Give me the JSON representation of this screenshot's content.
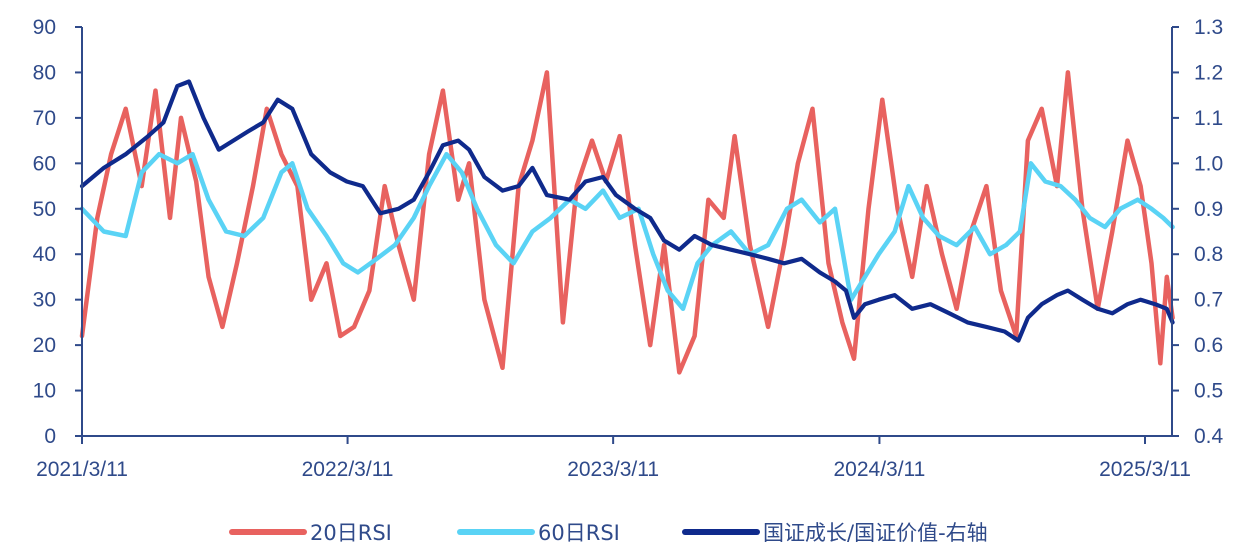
{
  "chart_data": {
    "type": "line",
    "title": "",
    "xlabel": "",
    "ylabel": "",
    "x_tick_labels": [
      "2021/3/11",
      "2022/3/11",
      "2023/3/11",
      "2024/3/11",
      "2025/3/11"
    ],
    "x_range": [
      "2021-03-11",
      "2025-04-20"
    ],
    "ylim_left": [
      0,
      90
    ],
    "ylim_right": [
      0.4,
      1.3
    ],
    "y_ticks_left": [
      0,
      10,
      20,
      30,
      40,
      50,
      60,
      70,
      80,
      90
    ],
    "y_ticks_right": [
      0.4,
      0.5,
      0.6,
      0.7,
      0.8,
      0.9,
      1.0,
      1.1,
      1.2,
      1.3
    ],
    "y_tick_labels_right": [
      "0.4",
      "0.5",
      "0.6",
      "0.7",
      "0.8",
      "0.9",
      "1.0",
      "1.1",
      "1.2",
      "1.3"
    ],
    "grid": false,
    "legend_position": "bottom",
    "series": [
      {
        "name": "20日RSI",
        "axis": "left",
        "color": "#e8625f",
        "points": [
          [
            "2021-03-11",
            22
          ],
          [
            "2021-04-01",
            48
          ],
          [
            "2021-04-20",
            62
          ],
          [
            "2021-05-10",
            72
          ],
          [
            "2021-06-01",
            55
          ],
          [
            "2021-06-20",
            76
          ],
          [
            "2021-07-10",
            48
          ],
          [
            "2021-07-25",
            70
          ],
          [
            "2021-08-15",
            56
          ],
          [
            "2021-09-01",
            35
          ],
          [
            "2021-09-20",
            24
          ],
          [
            "2021-10-10",
            38
          ],
          [
            "2021-11-01",
            55
          ],
          [
            "2021-11-20",
            72
          ],
          [
            "2021-12-10",
            62
          ],
          [
            "2022-01-01",
            55
          ],
          [
            "2022-01-20",
            30
          ],
          [
            "2022-02-10",
            38
          ],
          [
            "2022-03-01",
            22
          ],
          [
            "2022-03-20",
            24
          ],
          [
            "2022-04-10",
            32
          ],
          [
            "2022-05-01",
            55
          ],
          [
            "2022-05-20",
            42
          ],
          [
            "2022-06-10",
            30
          ],
          [
            "2022-07-01",
            62
          ],
          [
            "2022-07-20",
            76
          ],
          [
            "2022-08-10",
            52
          ],
          [
            "2022-08-25",
            60
          ],
          [
            "2022-09-15",
            30
          ],
          [
            "2022-10-10",
            15
          ],
          [
            "2022-11-01",
            55
          ],
          [
            "2022-11-20",
            65
          ],
          [
            "2022-12-10",
            80
          ],
          [
            "2023-01-01",
            25
          ],
          [
            "2023-01-20",
            55
          ],
          [
            "2023-02-10",
            65
          ],
          [
            "2023-03-01",
            56
          ],
          [
            "2023-03-20",
            66
          ],
          [
            "2023-04-10",
            42
          ],
          [
            "2023-05-01",
            20
          ],
          [
            "2023-05-20",
            42
          ],
          [
            "2023-06-10",
            14
          ],
          [
            "2023-07-01",
            22
          ],
          [
            "2023-07-20",
            52
          ],
          [
            "2023-08-10",
            48
          ],
          [
            "2023-08-25",
            66
          ],
          [
            "2023-09-15",
            42
          ],
          [
            "2023-10-10",
            24
          ],
          [
            "2023-11-01",
            42
          ],
          [
            "2023-11-20",
            60
          ],
          [
            "2023-12-10",
            72
          ],
          [
            "2024-01-01",
            38
          ],
          [
            "2024-01-20",
            25
          ],
          [
            "2024-02-05",
            17
          ],
          [
            "2024-02-25",
            50
          ],
          [
            "2024-03-15",
            74
          ],
          [
            "2024-04-05",
            50
          ],
          [
            "2024-04-25",
            35
          ],
          [
            "2024-05-15",
            55
          ],
          [
            "2024-06-05",
            40
          ],
          [
            "2024-06-25",
            28
          ],
          [
            "2024-07-15",
            45
          ],
          [
            "2024-08-05",
            55
          ],
          [
            "2024-08-25",
            32
          ],
          [
            "2024-09-15",
            22
          ],
          [
            "2024-10-01",
            65
          ],
          [
            "2024-10-20",
            72
          ],
          [
            "2024-11-10",
            55
          ],
          [
            "2024-11-25",
            80
          ],
          [
            "2024-12-15",
            50
          ],
          [
            "2025-01-05",
            28
          ],
          [
            "2025-01-25",
            45
          ],
          [
            "2025-02-15",
            65
          ],
          [
            "2025-03-05",
            55
          ],
          [
            "2025-03-20",
            38
          ],
          [
            "2025-04-01",
            16
          ],
          [
            "2025-04-10",
            35
          ],
          [
            "2025-04-18",
            26
          ]
        ]
      },
      {
        "name": "60日RSI",
        "axis": "left",
        "color": "#5ad3f5",
        "points": [
          [
            "2021-03-11",
            50
          ],
          [
            "2021-04-10",
            45
          ],
          [
            "2021-05-10",
            44
          ],
          [
            "2021-06-01",
            58
          ],
          [
            "2021-06-25",
            62
          ],
          [
            "2021-07-20",
            60
          ],
          [
            "2021-08-10",
            62
          ],
          [
            "2021-09-01",
            52
          ],
          [
            "2021-09-25",
            45
          ],
          [
            "2021-10-20",
            44
          ],
          [
            "2021-11-15",
            48
          ],
          [
            "2021-12-10",
            58
          ],
          [
            "2021-12-25",
            60
          ],
          [
            "2022-01-15",
            50
          ],
          [
            "2022-02-10",
            44
          ],
          [
            "2022-03-05",
            38
          ],
          [
            "2022-03-25",
            36
          ],
          [
            "2022-04-20",
            39
          ],
          [
            "2022-05-15",
            42
          ],
          [
            "2022-06-10",
            48
          ],
          [
            "2022-07-01",
            55
          ],
          [
            "2022-07-25",
            62
          ],
          [
            "2022-08-15",
            58
          ],
          [
            "2022-09-05",
            50
          ],
          [
            "2022-10-01",
            42
          ],
          [
            "2022-10-25",
            38
          ],
          [
            "2022-11-20",
            45
          ],
          [
            "2022-12-15",
            48
          ],
          [
            "2023-01-10",
            52
          ],
          [
            "2023-02-01",
            50
          ],
          [
            "2023-02-25",
            54
          ],
          [
            "2023-03-20",
            48
          ],
          [
            "2023-04-15",
            50
          ],
          [
            "2023-05-05",
            40
          ],
          [
            "2023-05-25",
            32
          ],
          [
            "2023-06-15",
            28
          ],
          [
            "2023-07-05",
            38
          ],
          [
            "2023-07-25",
            42
          ],
          [
            "2023-08-20",
            45
          ],
          [
            "2023-09-15",
            40
          ],
          [
            "2023-10-10",
            42
          ],
          [
            "2023-11-05",
            50
          ],
          [
            "2023-11-25",
            52
          ],
          [
            "2023-12-20",
            47
          ],
          [
            "2024-01-10",
            50
          ],
          [
            "2024-02-01",
            30
          ],
          [
            "2024-02-20",
            35
          ],
          [
            "2024-03-10",
            40
          ],
          [
            "2024-04-01",
            45
          ],
          [
            "2024-04-20",
            55
          ],
          [
            "2024-05-10",
            48
          ],
          [
            "2024-06-01",
            44
          ],
          [
            "2024-06-25",
            42
          ],
          [
            "2024-07-20",
            46
          ],
          [
            "2024-08-10",
            40
          ],
          [
            "2024-09-01",
            42
          ],
          [
            "2024-09-20",
            45
          ],
          [
            "2024-10-05",
            60
          ],
          [
            "2024-10-25",
            56
          ],
          [
            "2024-11-15",
            55
          ],
          [
            "2024-12-05",
            52
          ],
          [
            "2024-12-25",
            48
          ],
          [
            "2025-01-15",
            46
          ],
          [
            "2025-02-05",
            50
          ],
          [
            "2025-03-01",
            52
          ],
          [
            "2025-03-20",
            50
          ],
          [
            "2025-04-05",
            48
          ],
          [
            "2025-04-18",
            46
          ]
        ]
      },
      {
        "name": "国证成长/国证价值-右轴",
        "axis": "right",
        "color": "#0f2a8c",
        "points": [
          [
            "2021-03-11",
            0.95
          ],
          [
            "2021-04-10",
            0.99
          ],
          [
            "2021-05-10",
            1.02
          ],
          [
            "2021-06-10",
            1.06
          ],
          [
            "2021-07-01",
            1.09
          ],
          [
            "2021-07-20",
            1.17
          ],
          [
            "2021-08-05",
            1.18
          ],
          [
            "2021-08-25",
            1.1
          ],
          [
            "2021-09-15",
            1.03
          ],
          [
            "2021-10-05",
            1.05
          ],
          [
            "2021-10-25",
            1.07
          ],
          [
            "2021-11-15",
            1.09
          ],
          [
            "2021-12-05",
            1.14
          ],
          [
            "2021-12-25",
            1.12
          ],
          [
            "2022-01-20",
            1.02
          ],
          [
            "2022-02-15",
            0.98
          ],
          [
            "2022-03-10",
            0.96
          ],
          [
            "2022-04-01",
            0.95
          ],
          [
            "2022-04-25",
            0.89
          ],
          [
            "2022-05-20",
            0.9
          ],
          [
            "2022-06-10",
            0.92
          ],
          [
            "2022-07-01",
            0.98
          ],
          [
            "2022-07-20",
            1.04
          ],
          [
            "2022-08-10",
            1.05
          ],
          [
            "2022-08-25",
            1.03
          ],
          [
            "2022-09-15",
            0.97
          ],
          [
            "2022-10-10",
            0.94
          ],
          [
            "2022-11-01",
            0.95
          ],
          [
            "2022-11-20",
            0.99
          ],
          [
            "2022-12-10",
            0.93
          ],
          [
            "2023-01-10",
            0.92
          ],
          [
            "2023-02-01",
            0.96
          ],
          [
            "2023-02-25",
            0.97
          ],
          [
            "2023-03-15",
            0.93
          ],
          [
            "2023-04-10",
            0.9
          ],
          [
            "2023-05-01",
            0.88
          ],
          [
            "2023-05-20",
            0.83
          ],
          [
            "2023-06-10",
            0.81
          ],
          [
            "2023-07-01",
            0.84
          ],
          [
            "2023-07-25",
            0.82
          ],
          [
            "2023-08-20",
            0.81
          ],
          [
            "2023-09-15",
            0.8
          ],
          [
            "2023-10-10",
            0.79
          ],
          [
            "2023-11-01",
            0.78
          ],
          [
            "2023-11-25",
            0.79
          ],
          [
            "2023-12-20",
            0.76
          ],
          [
            "2024-01-10",
            0.74
          ],
          [
            "2024-01-25",
            0.72
          ],
          [
            "2024-02-05",
            0.66
          ],
          [
            "2024-02-20",
            0.69
          ],
          [
            "2024-03-10",
            0.7
          ],
          [
            "2024-04-01",
            0.71
          ],
          [
            "2024-04-25",
            0.68
          ],
          [
            "2024-05-20",
            0.69
          ],
          [
            "2024-06-15",
            0.67
          ],
          [
            "2024-07-10",
            0.65
          ],
          [
            "2024-08-05",
            0.64
          ],
          [
            "2024-08-30",
            0.63
          ],
          [
            "2024-09-18",
            0.61
          ],
          [
            "2024-10-01",
            0.66
          ],
          [
            "2024-10-20",
            0.69
          ],
          [
            "2024-11-10",
            0.71
          ],
          [
            "2024-11-25",
            0.72
          ],
          [
            "2024-12-15",
            0.7
          ],
          [
            "2025-01-05",
            0.68
          ],
          [
            "2025-01-25",
            0.67
          ],
          [
            "2025-02-15",
            0.69
          ],
          [
            "2025-03-05",
            0.7
          ],
          [
            "2025-03-25",
            0.69
          ],
          [
            "2025-04-10",
            0.68
          ],
          [
            "2025-04-18",
            0.65
          ]
        ]
      }
    ]
  },
  "legend": [
    {
      "label": "20日RSI",
      "color": "#e8625f"
    },
    {
      "label": "60日RSI",
      "color": "#5ad3f5"
    },
    {
      "label": "国证成长/国证价值-右轴",
      "color": "#0f2a8c"
    }
  ],
  "axis_color": "#2f4a8a"
}
